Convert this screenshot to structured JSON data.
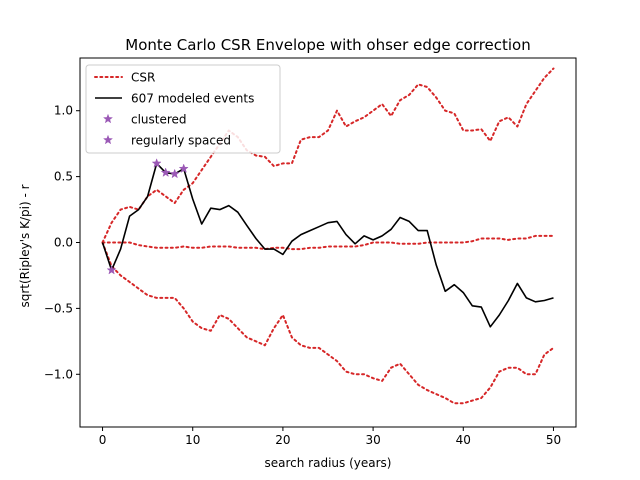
{
  "chart_data": {
    "type": "line",
    "title": "Monte Carlo CSR Envelope with ohser edge correction",
    "xlabel": "search radius (years)",
    "ylabel": "sqrt(Ripley's K/pi) - r",
    "xlim": [
      -2.5,
      52.5
    ],
    "ylim": [
      -1.4,
      1.4
    ],
    "x_ticks": [
      0,
      10,
      20,
      30,
      40,
      50
    ],
    "y_ticks": [
      -1.0,
      -0.5,
      0.0,
      0.5,
      1.0
    ],
    "x_tick_labels": [
      "0",
      "10",
      "20",
      "30",
      "40",
      "50"
    ],
    "y_tick_labels": [
      "−1.0",
      "−0.5",
      "0.0",
      "0.5",
      "1.0"
    ],
    "grid": false,
    "legend_position": "top-left",
    "legend": [
      {
        "label": "CSR",
        "style": "dotted-line",
        "color": "#d62728"
      },
      {
        "label": "607 modeled events",
        "style": "solid-line",
        "color": "#000000"
      },
      {
        "label": "clustered",
        "style": "star-marker",
        "color": "#9b59b6"
      },
      {
        "label": "regularly spaced",
        "style": "star-marker",
        "color": "#9b59b6"
      }
    ],
    "x": [
      0,
      1,
      2,
      3,
      4,
      5,
      6,
      7,
      8,
      9,
      10,
      11,
      12,
      13,
      14,
      15,
      16,
      17,
      18,
      19,
      20,
      21,
      22,
      23,
      24,
      25,
      26,
      27,
      28,
      29,
      30,
      31,
      32,
      33,
      34,
      35,
      36,
      37,
      38,
      39,
      40,
      41,
      42,
      43,
      44,
      45,
      46,
      47,
      48,
      49,
      50
    ],
    "series": [
      {
        "name": "CSR",
        "role": "upper",
        "color": "#d62728",
        "values": [
          0.0,
          0.15,
          0.25,
          0.27,
          0.25,
          0.35,
          0.4,
          0.35,
          0.3,
          0.4,
          0.45,
          0.55,
          0.65,
          0.75,
          0.85,
          0.8,
          0.7,
          0.66,
          0.65,
          0.58,
          0.6,
          0.6,
          0.78,
          0.8,
          0.8,
          0.85,
          1.0,
          0.88,
          0.92,
          0.95,
          1.0,
          1.05,
          0.96,
          1.08,
          1.12,
          1.2,
          1.18,
          1.1,
          1.0,
          0.98,
          0.85,
          0.85,
          0.86,
          0.77,
          0.92,
          0.95,
          0.88,
          1.05,
          1.15,
          1.25,
          1.32
        ]
      },
      {
        "name": "CSR",
        "role": "median",
        "color": "#d62728",
        "values": [
          0.0,
          0.0,
          0.0,
          0.0,
          -0.02,
          -0.03,
          -0.04,
          -0.04,
          -0.04,
          -0.03,
          -0.04,
          -0.04,
          -0.03,
          -0.03,
          -0.03,
          -0.04,
          -0.04,
          -0.04,
          -0.05,
          -0.04,
          -0.04,
          -0.05,
          -0.05,
          -0.04,
          -0.04,
          -0.03,
          -0.03,
          -0.03,
          -0.03,
          -0.02,
          0.0,
          0.0,
          0.0,
          -0.01,
          -0.01,
          -0.01,
          0.0,
          0.0,
          0.0,
          0.0,
          0.0,
          0.01,
          0.03,
          0.03,
          0.03,
          0.02,
          0.03,
          0.03,
          0.05,
          0.05,
          0.05
        ]
      },
      {
        "name": "CSR",
        "role": "lower",
        "color": "#d62728",
        "values": [
          0.0,
          -0.18,
          -0.25,
          -0.3,
          -0.35,
          -0.4,
          -0.42,
          -0.42,
          -0.42,
          -0.5,
          -0.6,
          -0.65,
          -0.67,
          -0.55,
          -0.58,
          -0.65,
          -0.72,
          -0.75,
          -0.78,
          -0.65,
          -0.55,
          -0.72,
          -0.78,
          -0.8,
          -0.8,
          -0.85,
          -0.9,
          -0.98,
          -1.0,
          -1.0,
          -1.03,
          -1.05,
          -0.95,
          -0.92,
          -1.0,
          -1.08,
          -1.12,
          -1.15,
          -1.18,
          -1.22,
          -1.22,
          -1.2,
          -1.18,
          -1.1,
          -0.98,
          -0.95,
          -0.95,
          -1.0,
          -1.0,
          -0.85,
          -0.8
        ]
      },
      {
        "name": "607 modeled events",
        "role": "observed",
        "color": "#000000",
        "values": [
          0.0,
          -0.21,
          -0.05,
          0.2,
          0.25,
          0.35,
          0.6,
          0.53,
          0.52,
          0.56,
          0.33,
          0.14,
          0.26,
          0.25,
          0.28,
          0.23,
          0.13,
          0.03,
          -0.05,
          -0.05,
          -0.09,
          0.01,
          0.06,
          0.09,
          0.12,
          0.15,
          0.16,
          0.06,
          -0.01,
          0.05,
          0.02,
          0.05,
          0.1,
          0.19,
          0.16,
          0.09,
          0.09,
          -0.17,
          -0.37,
          -0.32,
          -0.38,
          -0.48,
          -0.49,
          -0.64,
          -0.55,
          -0.44,
          -0.31,
          -0.42,
          -0.45,
          -0.44,
          -0.42
        ]
      }
    ],
    "markers": {
      "color": "#9b59b6",
      "clustered_x": [
        6,
        7,
        8,
        9
      ],
      "regularly_spaced_x": [
        1
      ]
    }
  }
}
